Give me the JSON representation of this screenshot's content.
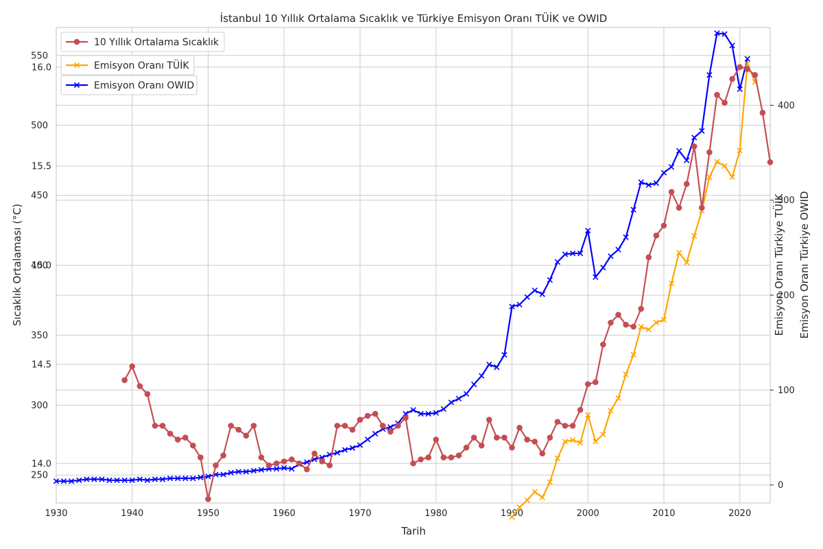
{
  "chart_data": {
    "type": "line",
    "title": "İstanbul 10 Yıllık Ortalama Sıcaklık ve Türkiye Emisyon Oranı TÜİK ve OWID",
    "xlabel": "Tarih",
    "xlim": [
      1930,
      2024
    ],
    "xticks": [
      1930,
      1940,
      1950,
      1960,
      1970,
      1980,
      1990,
      2000,
      2010,
      2020
    ],
    "grid": true,
    "legend_placement": "top-left",
    "axes": {
      "temp": {
        "label": "Sıcaklık Ortalaması (°C)",
        "ylim": [
          13.8,
          16.2
        ],
        "ticks": [
          14.0,
          14.5,
          15.0,
          15.5,
          16.0
        ]
      },
      "tuik": {
        "label": "Emisyon Oranı Türkiye TÜİK",
        "ylim": [
          230,
          570
        ],
        "ticks": [
          250,
          300,
          350,
          400,
          450,
          500,
          550
        ]
      },
      "owid": {
        "label": "Emisyon Oranı Türkiye OWID",
        "ylim": [
          -19,
          482
        ],
        "ticks": [
          0,
          100,
          200,
          300,
          400
        ]
      }
    },
    "series": [
      {
        "name": "10 Yıllık Ortalama Sıcaklık",
        "axis": "temp",
        "color": "#c44e52",
        "marker": "circle",
        "x": [
          1939,
          1940,
          1941,
          1942,
          1943,
          1944,
          1945,
          1946,
          1947,
          1948,
          1949,
          1950,
          1951,
          1952,
          1953,
          1954,
          1955,
          1956,
          1957,
          1958,
          1959,
          1960,
          1961,
          1962,
          1963,
          1964,
          1965,
          1966,
          1967,
          1968,
          1969,
          1970,
          1971,
          1972,
          1973,
          1974,
          1975,
          1976,
          1977,
          1978,
          1979,
          1980,
          1981,
          1982,
          1983,
          1984,
          1985,
          1986,
          1987,
          1988,
          1989,
          1990,
          1991,
          1992,
          1993,
          1994,
          1995,
          1996,
          1997,
          1998,
          1999,
          2000,
          2001,
          2002,
          2003,
          2004,
          2005,
          2006,
          2007,
          2008,
          2009,
          2010,
          2011,
          2012,
          2013,
          2014,
          2015,
          2016,
          2017,
          2018,
          2019,
          2020,
          2021,
          2022,
          2023,
          2024
        ],
        "y": [
          14.42,
          14.49,
          14.39,
          14.35,
          14.19,
          14.19,
          14.15,
          14.12,
          14.13,
          14.09,
          14.03,
          13.82,
          13.99,
          14.04,
          14.19,
          14.17,
          14.14,
          14.19,
          14.03,
          13.99,
          14.0,
          14.01,
          14.02,
          14.0,
          13.97,
          14.05,
          14.01,
          13.99,
          14.19,
          14.19,
          14.17,
          14.22,
          14.24,
          14.25,
          14.19,
          14.16,
          14.19,
          14.23,
          14.0,
          14.02,
          14.03,
          14.12,
          14.03,
          14.03,
          14.04,
          14.08,
          14.13,
          14.09,
          14.22,
          14.13,
          14.13,
          14.08,
          14.18,
          14.12,
          14.11,
          14.05,
          14.13,
          14.21,
          14.19,
          14.19,
          14.27,
          14.4,
          14.41,
          14.6,
          14.71,
          14.75,
          14.7,
          14.69,
          14.78,
          15.04,
          15.15,
          15.2,
          15.37,
          15.29,
          15.41,
          15.6,
          15.29,
          15.57,
          15.86,
          15.82,
          15.94,
          16.0,
          15.99,
          15.96,
          15.77,
          15.52
        ]
      },
      {
        "name": "Emisyon Oranı TÜİK",
        "axis": "tuik",
        "color": "#ffa500",
        "marker": "x",
        "x": [
          1990,
          1991,
          1992,
          1993,
          1994,
          1995,
          1996,
          1997,
          1998,
          1999,
          2000,
          2001,
          2002,
          2003,
          2004,
          2005,
          2006,
          2007,
          2008,
          2009,
          2010,
          2011,
          2012,
          2013,
          2014,
          2015,
          2016,
          2017,
          2018,
          2019,
          2020,
          2021,
          2022
        ],
        "y": [
          220,
          227,
          232,
          238,
          234,
          245,
          262,
          274,
          275,
          273,
          293,
          274,
          279,
          296,
          305,
          322,
          336,
          356,
          354,
          359,
          361,
          387,
          409,
          402,
          421,
          439,
          463,
          474,
          471,
          463,
          482,
          544,
          531
        ]
      },
      {
        "name": "Emisyon Oranı OWID",
        "axis": "owid",
        "color": "#0000ff",
        "marker": "x",
        "x": [
          1930,
          1931,
          1932,
          1933,
          1934,
          1935,
          1936,
          1937,
          1938,
          1939,
          1940,
          1941,
          1942,
          1943,
          1944,
          1945,
          1946,
          1947,
          1948,
          1949,
          1950,
          1951,
          1952,
          1953,
          1954,
          1955,
          1956,
          1957,
          1958,
          1959,
          1960,
          1961,
          1962,
          1963,
          1964,
          1965,
          1966,
          1967,
          1968,
          1969,
          1970,
          1971,
          1972,
          1973,
          1974,
          1975,
          1976,
          1977,
          1978,
          1979,
          1980,
          1981,
          1982,
          1983,
          1984,
          1985,
          1986,
          1987,
          1988,
          1989,
          1990,
          1991,
          1992,
          1993,
          1994,
          1995,
          1996,
          1997,
          1998,
          1999,
          2000,
          2001,
          2002,
          2003,
          2004,
          2005,
          2006,
          2007,
          2008,
          2009,
          2010,
          2011,
          2012,
          2013,
          2014,
          2015,
          2016,
          2017,
          2018,
          2019,
          2020,
          2021
        ],
        "y": [
          4,
          4,
          4,
          5,
          6,
          6,
          6,
          5,
          5,
          5,
          5,
          6,
          5,
          6,
          6,
          7,
          7,
          7,
          7,
          8,
          9,
          11,
          11,
          13,
          14,
          14,
          15,
          16,
          17,
          17,
          18,
          17,
          22,
          24,
          27,
          29,
          32,
          34,
          37,
          39,
          42,
          48,
          54,
          59,
          61,
          65,
          75,
          79,
          75,
          75,
          76,
          80,
          87,
          91,
          96,
          106,
          115,
          127,
          124,
          137,
          188,
          190,
          198,
          205,
          201,
          216,
          235,
          243,
          244,
          244,
          268,
          219,
          229,
          241,
          248,
          261,
          290,
          319,
          316,
          318,
          329,
          335,
          352,
          342,
          366,
          373,
          432,
          476,
          475,
          463,
          417,
          449
        ]
      }
    ]
  }
}
